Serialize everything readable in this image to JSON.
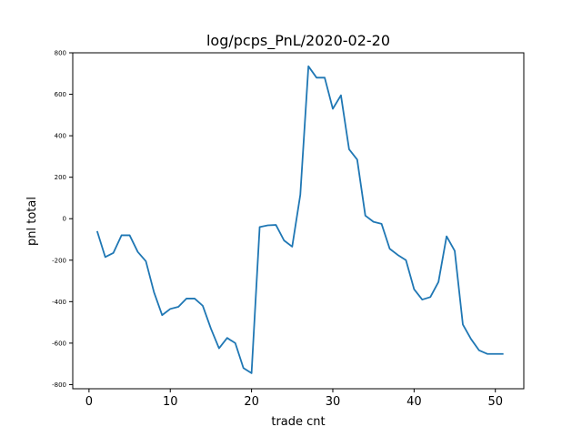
{
  "chart_data": {
    "type": "line",
    "title": "log/pcps_PnL/2020-02-20",
    "xlabel": "trade cnt",
    "ylabel": "pnl total",
    "xlim": [
      -2,
      53.5
    ],
    "ylim": [
      -820,
      800
    ],
    "xticks": [
      0,
      10,
      20,
      30,
      40,
      50
    ],
    "yticks": [
      -800,
      -600,
      -400,
      -200,
      0,
      200,
      400,
      600,
      800
    ],
    "grid": false,
    "series": [
      {
        "color": "#1f77b4",
        "x": [
          1,
          2,
          3,
          4,
          5,
          6,
          7,
          8,
          9,
          10,
          11,
          12,
          13,
          14,
          15,
          16,
          17,
          18,
          19,
          20,
          21,
          22,
          23,
          24,
          25,
          26,
          27,
          28,
          29,
          30,
          31,
          32,
          33,
          34,
          35,
          36,
          37,
          38,
          39,
          40,
          41,
          42,
          43,
          44,
          45,
          46,
          47,
          48,
          49,
          50,
          51
        ],
        "y": [
          -60,
          -185,
          -165,
          -80,
          -80,
          -160,
          -205,
          -355,
          -465,
          -435,
          -425,
          -385,
          -385,
          -420,
          -530,
          -625,
          -575,
          -600,
          -720,
          -745,
          -40,
          -32,
          -30,
          -105,
          -135,
          115,
          735,
          680,
          680,
          530,
          595,
          335,
          285,
          15,
          -15,
          -25,
          -145,
          -175,
          -200,
          -340,
          -390,
          -378,
          -305,
          -85,
          -155,
          -510,
          -580,
          -635,
          -652,
          -652,
          -652
        ]
      }
    ]
  }
}
